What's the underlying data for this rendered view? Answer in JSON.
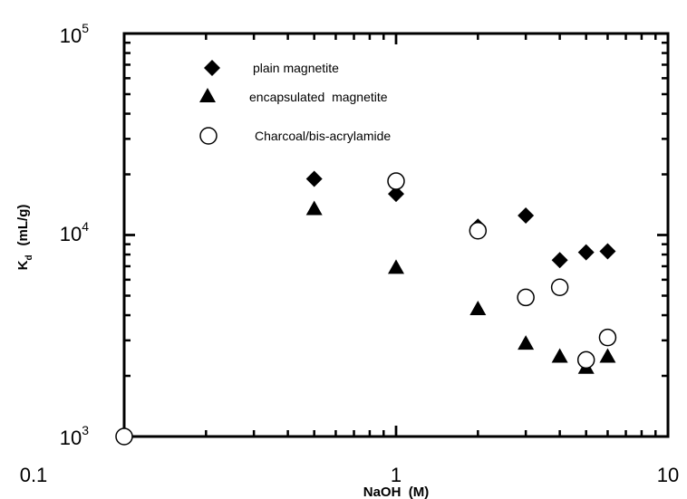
{
  "chart_data": {
    "type": "scatter",
    "x_scale": "log",
    "y_scale": "log",
    "xlim": [
      0.1,
      10
    ],
    "ylim": [
      1000,
      100000
    ],
    "xlabel": "NaOH  (M)",
    "ylabel": "K",
    "ylabel_subscript": "d",
    "ylabel_units": "(mL/g)",
    "x_tick_labels": [
      "0.1",
      "1",
      "10"
    ],
    "y_tick_labels": [
      {
        "base": "10",
        "exp": "3"
      },
      {
        "base": "10",
        "exp": "4"
      },
      {
        "base": "10",
        "exp": "5"
      }
    ],
    "grid": false,
    "legend_position": "top-left",
    "series": [
      {
        "name": "plain magnetite",
        "marker": "diamond",
        "color": "#000000",
        "x": [
          0.5,
          1,
          2,
          3,
          4,
          5,
          6
        ],
        "y": [
          19000,
          16000,
          11000,
          12500,
          7500,
          8200,
          8300
        ]
      },
      {
        "name": "encapsulated  magnetite",
        "marker": "triangle",
        "color": "#000000",
        "x": [
          0.5,
          1,
          2,
          3,
          4,
          5,
          6
        ],
        "y": [
          13500,
          6900,
          4300,
          2900,
          2500,
          2200,
          2500
        ]
      },
      {
        "name": "Charcoal/bis-acrylamide",
        "marker": "circle-open",
        "color": "#000000",
        "x": [
          0.1,
          1,
          2,
          3,
          4,
          5,
          6
        ],
        "y": [
          1000,
          18500,
          10500,
          4900,
          5500,
          2400,
          3100
        ]
      }
    ]
  }
}
